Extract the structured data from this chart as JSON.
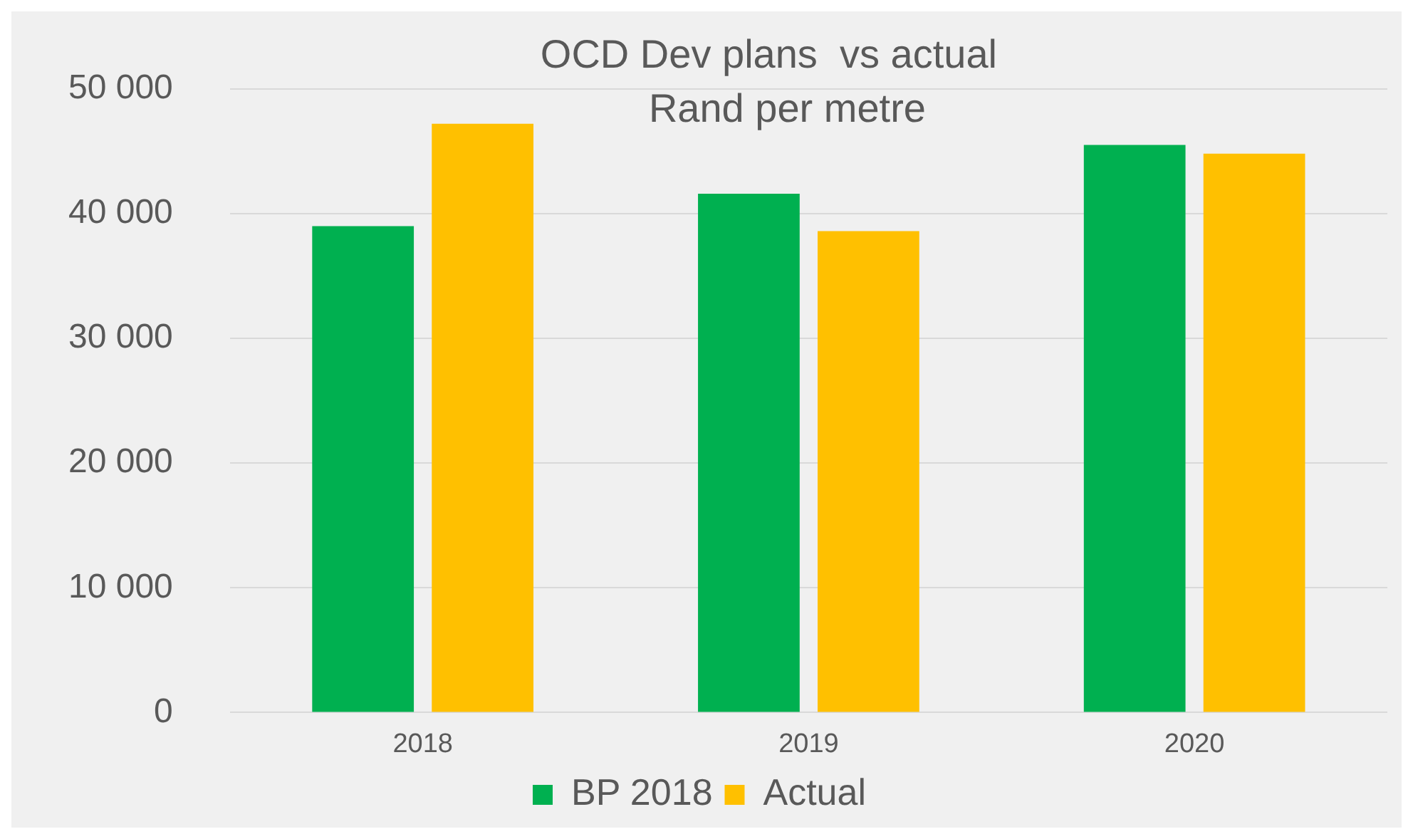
{
  "chart_data": {
    "type": "bar",
    "title": [
      "OCD Dev plans  vs actual",
      "Rand per metre"
    ],
    "categories": [
      "2018",
      "2019",
      "2020"
    ],
    "series": [
      {
        "name": "BP 2018",
        "color": "#00b050",
        "values": [
          39000,
          41600,
          45500
        ]
      },
      {
        "name": "Actual",
        "color": "#ffc000",
        "values": [
          47200,
          38600,
          44800
        ]
      }
    ],
    "ylim": [
      0,
      50000
    ],
    "yticks": [
      0,
      {
        "value": 10000,
        "label": "10 000"
      },
      {
        "value": 20000,
        "label": "20 000"
      },
      {
        "value": 30000,
        "label": "30 000"
      },
      {
        "value": 40000,
        "label": "40 000"
      },
      {
        "value": 50000,
        "label": "50 000"
      }
    ],
    "grid": "y",
    "legend": "bottom"
  }
}
